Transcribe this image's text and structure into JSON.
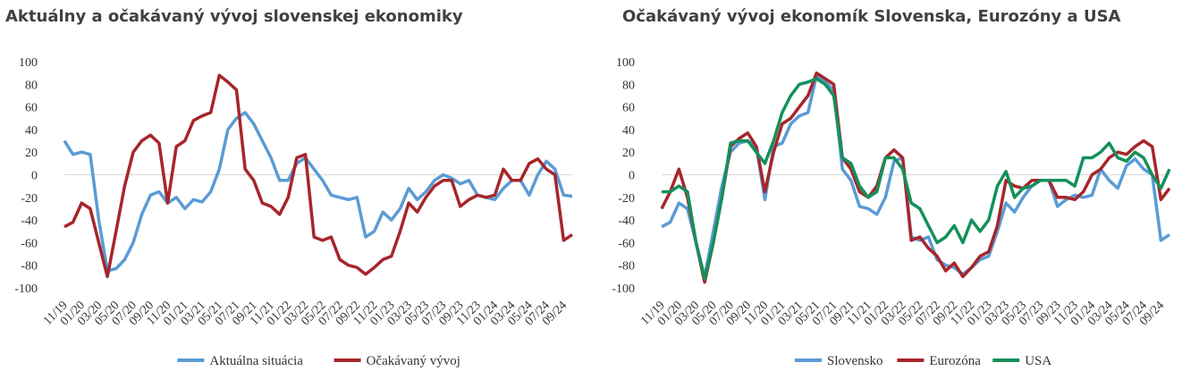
{
  "chart_data": [
    {
      "type": "line",
      "title": "Aktuálny a očakávaný vývoj slovenskej ekonomiky",
      "categories": [
        "11/19",
        null,
        "01/20",
        null,
        "03/20",
        null,
        "05/20",
        null,
        "07/20",
        null,
        "09/20",
        null,
        "11/20",
        null,
        "01/21",
        null,
        "03/21",
        null,
        "05/21",
        null,
        "07/21",
        null,
        "09/21",
        null,
        "11/21",
        null,
        "01/22",
        null,
        "03/22",
        null,
        "05/22",
        null,
        "07/22",
        null,
        "09/22",
        null,
        "11/22",
        null,
        "01/23",
        null,
        "03/23",
        null,
        "05/23",
        null,
        "07/23",
        null,
        "09/23",
        null,
        "11/23",
        null,
        "01/24",
        null,
        "03/24",
        null,
        "05/24",
        null,
        "07/24",
        null,
        "09/24",
        null
      ],
      "series": [
        {
          "name": "Aktuálna situácia",
          "color": "#5b9bd5",
          "values": [
            30,
            18,
            20,
            18,
            -40,
            -85,
            -83,
            -75,
            -60,
            -35,
            -18,
            -15,
            -25,
            -20,
            -30,
            -22,
            -24,
            -15,
            5,
            40,
            50,
            55,
            45,
            30,
            15,
            -5,
            -5,
            10,
            15,
            5,
            -5,
            -18,
            -20,
            -22,
            -20,
            -55,
            -50,
            -33,
            -40,
            -30,
            -12,
            -22,
            -15,
            -5,
            0,
            -3,
            -8,
            -5,
            -18,
            -20,
            -22,
            -12,
            -5,
            -5,
            -18,
            0,
            12,
            5,
            -18,
            -19
          ]
        },
        {
          "name": "Očakávaný vývoj",
          "color": "#a6262b",
          "values": [
            -46,
            -42,
            -25,
            -30,
            -60,
            -90,
            -50,
            -10,
            20,
            30,
            35,
            28,
            -25,
            25,
            30,
            48,
            52,
            55,
            88,
            82,
            75,
            5,
            -5,
            -25,
            -28,
            -35,
            -20,
            15,
            18,
            -55,
            -58,
            -55,
            -75,
            -80,
            -82,
            -88,
            -82,
            -75,
            -72,
            -50,
            -25,
            -33,
            -20,
            -10,
            -5,
            -5,
            -28,
            -22,
            -18,
            -20,
            -18,
            5,
            -5,
            -5,
            10,
            14,
            5,
            0,
            -58,
            -53
          ]
        }
      ],
      "ylim": [
        -100,
        100
      ],
      "yticks": [
        -100,
        -80,
        -60,
        -40,
        -20,
        0,
        20,
        40,
        60,
        80,
        100
      ]
    },
    {
      "type": "line",
      "title": "Očakávaný vývoj ekonomík Slovenska, Eurozóny a USA",
      "categories": [
        "11/19",
        null,
        "01/20",
        null,
        "03/20",
        null,
        "05/20",
        null,
        "07/20",
        null,
        "09/20",
        null,
        "11/20",
        null,
        "01/21",
        null,
        "03/21",
        null,
        "05/21",
        null,
        "07/21",
        null,
        "09/21",
        null,
        "11/21",
        null,
        "01/22",
        null,
        "03/22",
        null,
        "05/22",
        null,
        "07/22",
        null,
        "09/22",
        null,
        "11/22",
        null,
        "01/23",
        null,
        "03/23",
        null,
        "05/23",
        null,
        "07/23",
        null,
        "09/23",
        null,
        "11/23",
        null,
        "01/24",
        null,
        "03/24",
        null,
        "05/24",
        null,
        "07/24",
        null,
        "09/24",
        null
      ],
      "series": [
        {
          "name": "Slovensko",
          "color": "#5b9bd5",
          "values": [
            -46,
            -42,
            -25,
            -30,
            -60,
            -90,
            -50,
            -10,
            20,
            28,
            30,
            25,
            -22,
            25,
            28,
            45,
            52,
            55,
            88,
            82,
            75,
            5,
            -5,
            -28,
            -30,
            -35,
            -20,
            12,
            15,
            -55,
            -58,
            -55,
            -75,
            -80,
            -82,
            -88,
            -82,
            -75,
            -72,
            -50,
            -25,
            -33,
            -20,
            -10,
            -5,
            -5,
            -28,
            -22,
            -18,
            -20,
            -18,
            5,
            -5,
            -12,
            8,
            14,
            5,
            0,
            -58,
            -53
          ]
        },
        {
          "name": "Eurozóna",
          "color": "#a6262b",
          "values": [
            -30,
            -15,
            5,
            -20,
            -60,
            -95,
            -60,
            -20,
            25,
            32,
            37,
            25,
            -15,
            20,
            45,
            50,
            60,
            70,
            90,
            85,
            80,
            15,
            5,
            -15,
            -20,
            -10,
            15,
            22,
            15,
            -58,
            -55,
            -65,
            -72,
            -85,
            -78,
            -90,
            -82,
            -72,
            -68,
            -45,
            -5,
            -10,
            -12,
            -5,
            -5,
            -5,
            -20,
            -20,
            -22,
            -15,
            0,
            5,
            15,
            20,
            18,
            25,
            30,
            25,
            -22,
            -12
          ]
        },
        {
          "name": "USA",
          "color": "#14905a",
          "values": [
            -15,
            -15,
            -10,
            -15,
            -60,
            -92,
            -60,
            -20,
            28,
            30,
            30,
            20,
            10,
            30,
            55,
            70,
            80,
            82,
            85,
            80,
            70,
            15,
            10,
            -10,
            -20,
            -15,
            15,
            15,
            5,
            -25,
            -30,
            -45,
            -60,
            -55,
            -45,
            -60,
            -40,
            -50,
            -40,
            -10,
            3,
            -20,
            -12,
            -10,
            -5,
            -5,
            -5,
            -5,
            -10,
            15,
            15,
            20,
            28,
            15,
            12,
            20,
            15,
            0,
            -12,
            5
          ]
        }
      ],
      "ylim": [
        -100,
        100
      ],
      "yticks": [
        -100,
        -80,
        -60,
        -40,
        -20,
        0,
        20,
        40,
        60,
        80,
        100
      ]
    }
  ]
}
